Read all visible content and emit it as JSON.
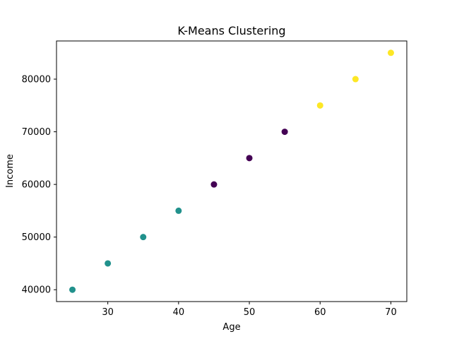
{
  "chart_data": {
    "type": "scatter",
    "title": "K-Means Clustering",
    "xlabel": "Age",
    "ylabel": "Income",
    "xlim": [
      22.75,
      72.25
    ],
    "ylim": [
      37750,
      87250
    ],
    "xticks": [
      30,
      40,
      50,
      60,
      70
    ],
    "yticks": [
      40000,
      50000,
      60000,
      70000,
      80000
    ],
    "grid": false,
    "legend": null,
    "cluster_colors": [
      "#440154",
      "#21918c",
      "#fde725"
    ],
    "points": [
      {
        "x": 25,
        "y": 40000,
        "cluster": 1
      },
      {
        "x": 30,
        "y": 45000,
        "cluster": 1
      },
      {
        "x": 35,
        "y": 50000,
        "cluster": 1
      },
      {
        "x": 40,
        "y": 55000,
        "cluster": 1
      },
      {
        "x": 45,
        "y": 60000,
        "cluster": 0
      },
      {
        "x": 50,
        "y": 65000,
        "cluster": 0
      },
      {
        "x": 55,
        "y": 70000,
        "cluster": 0
      },
      {
        "x": 60,
        "y": 75000,
        "cluster": 2
      },
      {
        "x": 65,
        "y": 80000,
        "cluster": 2
      },
      {
        "x": 70,
        "y": 85000,
        "cluster": 2
      }
    ]
  }
}
